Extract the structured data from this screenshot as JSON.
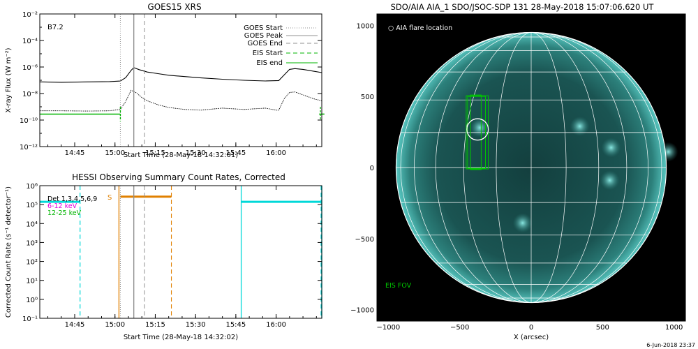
{
  "chart_data": [
    {
      "type": "line",
      "title": "GOES15 XRS",
      "xlabel": "Start Time (28-May-18 14:32:01)",
      "ylabel": "X-ray Flux (W m⁻²)",
      "xticks": [
        "14:45",
        "15:00",
        "15:15",
        "15:30",
        "15:45",
        "16:00"
      ],
      "xlim_min": [
        32,
        137
      ],
      "yticks": [
        "10⁻²",
        "10⁻⁴",
        "10⁻⁶",
        "10⁻⁸",
        "10⁻¹⁰",
        "10⁻¹²"
      ],
      "ylim_log": [
        -12,
        -2
      ],
      "annotation": "B7.2",
      "legend": [
        {
          "label": "GOES Start",
          "style": "dotted",
          "color": "#909090"
        },
        {
          "label": "GOES Peak",
          "style": "solid",
          "color": "#909090"
        },
        {
          "label": "GOES End",
          "style": "dashed",
          "color": "#909090"
        },
        {
          "label": "EIS Start",
          "style": "dashed",
          "color": "#00b400"
        },
        {
          "label": "EIS end",
          "style": "solid",
          "color": "#00b400"
        }
      ],
      "vlines_min": {
        "goes_start": 62,
        "goes_peak": 67,
        "goes_end": 71,
        "eis_start": 62
      },
      "series": [
        {
          "name": "long",
          "x_min": [
            32,
            40,
            50,
            58,
            62,
            64,
            66,
            67,
            69,
            72,
            76,
            80,
            86,
            92,
            100,
            108,
            116,
            121,
            123,
            125,
            127,
            130,
            134,
            137
          ],
          "y_log": [
            -7.12,
            -7.15,
            -7.12,
            -7.1,
            -7.06,
            -6.8,
            -6.25,
            -6.05,
            -6.2,
            -6.38,
            -6.5,
            -6.62,
            -6.72,
            -6.82,
            -6.92,
            -7.0,
            -7.05,
            -7.02,
            -6.6,
            -6.18,
            -6.12,
            -6.18,
            -6.32,
            -6.42
          ]
        },
        {
          "name": "short",
          "x_min": [
            32,
            40,
            50,
            58,
            62,
            64,
            66,
            68,
            70,
            72,
            76,
            80,
            86,
            92,
            100,
            108,
            116,
            120,
            121,
            123,
            125,
            127,
            130,
            134,
            137
          ],
          "y_log": [
            -9.3,
            -9.3,
            -9.32,
            -9.3,
            -9.2,
            -8.6,
            -7.75,
            -7.95,
            -8.3,
            -8.55,
            -8.85,
            -9.05,
            -9.2,
            -9.25,
            -9.1,
            -9.2,
            -9.1,
            -9.25,
            -9.25,
            -8.4,
            -7.92,
            -7.88,
            -8.1,
            -8.4,
            -8.55
          ]
        }
      ],
      "eis_segments": [
        {
          "x_min": [
            32,
            62
          ],
          "y_log": -9.55
        },
        {
          "x_min": [
            136,
            138
          ],
          "y_log": -9.55
        }
      ]
    },
    {
      "type": "line",
      "title": "HESSI Observing Summary Count Rates, Corrected",
      "xlabel": "Start Time (28-May-18 14:32:02)",
      "ylabel": "Corrected Count Rate (s⁻¹ detector⁻¹)",
      "xticks": [
        "14:45",
        "15:00",
        "15:15",
        "15:30",
        "15:45",
        "16:00"
      ],
      "xlim_min": [
        32,
        137
      ],
      "yticks": [
        "10⁶",
        "10⁵",
        "10⁴",
        "10³",
        "10²",
        "10¹",
        "10⁰",
        "10⁻¹"
      ],
      "ylim_log": [
        -1,
        6
      ],
      "legend": [
        {
          "label": "Det 1,3,4,5,6,9",
          "color": "#000000"
        },
        {
          "label": "6-12 keV",
          "color": "#e000e0"
        },
        {
          "label": "12-25 keV",
          "color": "#00b400"
        }
      ],
      "flag_label": "S",
      "series": [
        {
          "name": "cyan-1",
          "x_min": [
            32,
            47
          ],
          "y_log": [
            5.15,
            5.15
          ],
          "color": "#00d8d8"
        },
        {
          "name": "orange",
          "x_min": [
            62,
            81
          ],
          "y_log": [
            5.42,
            5.42
          ],
          "color": "#e08000"
        },
        {
          "name": "cyan-2",
          "x_min": [
            107,
            137
          ],
          "y_log": [
            5.15,
            5.15
          ],
          "color": "#00d8d8"
        }
      ],
      "vlines_min": {
        "cyan_solid": [
          107,
          137
        ],
        "cyan_dashed": [
          47
        ],
        "orange_solid": [
          62
        ],
        "orange_dashed": [
          81
        ],
        "goes_start": 62,
        "goes_peak": 67,
        "goes_end": 71
      }
    },
    {
      "type": "scatter",
      "title": "SDO/AIA AIA_1 SDO/JSOC-SDP 131 28-May-2018 15:07:06.620 UT",
      "xlabel": "X (arcsec)",
      "ylabel": "",
      "xticks": [
        "−1000",
        "−500",
        "0",
        "500",
        "1000"
      ],
      "yticks": [
        "1000",
        "500",
        "0",
        "−500",
        "−1000"
      ],
      "xlim": [
        -1080,
        1080
      ],
      "ylim": [
        -1080,
        1080
      ],
      "solar_radius_arcsec": 946,
      "legend_text": "○ AIA flare location",
      "fov_label": "EIS FOV",
      "flare_location": {
        "x": -375,
        "y": 268,
        "radius": 75
      },
      "eis_fov": [
        {
          "x": [
            -455,
            -300
          ],
          "y": [
            -10,
            505
          ]
        },
        {
          "x": [
            -445,
            -320
          ],
          "y": [
            -5,
            500
          ]
        },
        {
          "x": [
            -425,
            -350
          ],
          "y": [
            -15,
            510
          ]
        }
      ],
      "bright_spots": [
        {
          "x": -360,
          "y": 280
        },
        {
          "x": 340,
          "y": 290
        },
        {
          "x": 560,
          "y": 140
        },
        {
          "x": 550,
          "y": -90
        },
        {
          "x": -60,
          "y": -390
        },
        {
          "x": 960,
          "y": 110
        }
      ],
      "timestamp": "6-Jun-2018 23:37",
      "colors": {
        "disk": "#1a5452",
        "limb": "#57c6c0",
        "grid": "#ffffff",
        "fov": "#00c800"
      }
    }
  ]
}
